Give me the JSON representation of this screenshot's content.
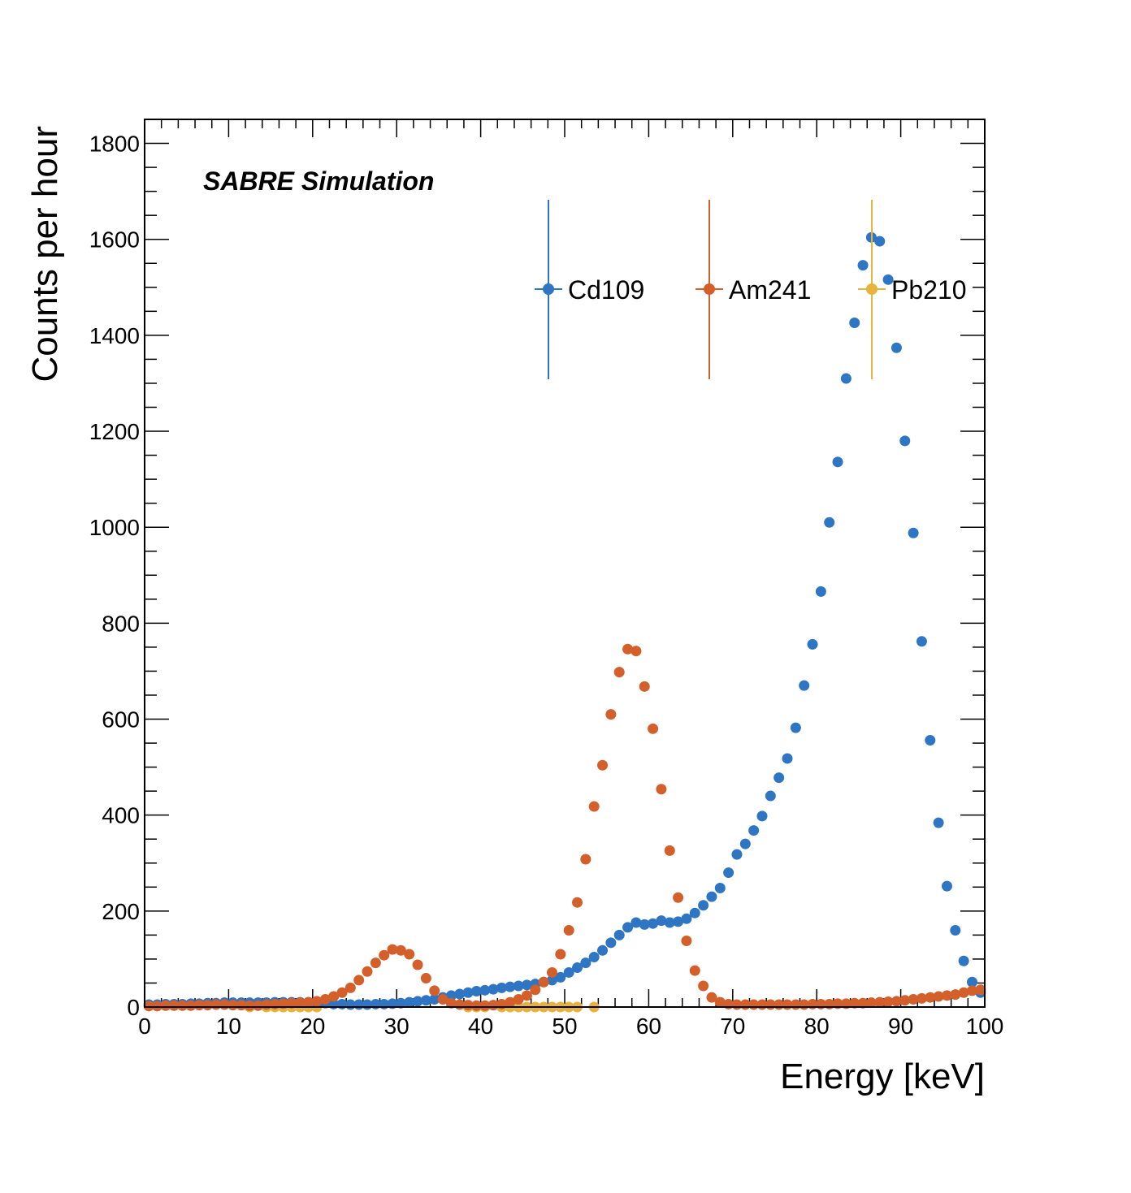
{
  "chart_data": {
    "type": "scatter",
    "annotation": "SABRE Simulation",
    "xlabel": "Energy [keV]",
    "ylabel": "Counts per hour",
    "xlim": [
      0,
      100
    ],
    "ylim": [
      0,
      1850
    ],
    "x_ticks": [
      0,
      10,
      20,
      30,
      40,
      50,
      60,
      70,
      80,
      90,
      100
    ],
    "y_ticks": [
      0,
      200,
      400,
      600,
      800,
      1000,
      1200,
      1400,
      1600,
      1800
    ],
    "x_tick_labels": [
      "0",
      "10",
      "20",
      "30",
      "40",
      "50",
      "60",
      "70",
      "80",
      "90",
      "100"
    ],
    "y_tick_labels": [
      "0",
      "200",
      "400",
      "600",
      "800",
      "1000",
      "1200",
      "1400",
      "1600",
      "1800"
    ],
    "grid": false,
    "legend": "top-right",
    "series": [
      {
        "name": "Cd109",
        "color": "#2E75C4",
        "x": [
          0.5,
          1.5,
          2.5,
          3.5,
          4.5,
          5.5,
          6.5,
          7.5,
          8.5,
          9.5,
          10.5,
          11.5,
          12.5,
          13.5,
          14.5,
          15.5,
          16.5,
          17.5,
          18.5,
          19.5,
          20.5,
          21.5,
          22.5,
          23.5,
          24.5,
          25.5,
          26.5,
          27.5,
          28.5,
          29.5,
          30.5,
          31.5,
          32.5,
          33.5,
          34.5,
          35.5,
          36.5,
          37.5,
          38.5,
          39.5,
          40.5,
          41.5,
          42.5,
          43.5,
          44.5,
          45.5,
          46.5,
          47.5,
          48.5,
          49.5,
          50.5,
          51.5,
          52.5,
          53.5,
          54.5,
          55.5,
          56.5,
          57.5,
          58.5,
          59.5,
          60.5,
          61.5,
          62.5,
          63.5,
          64.5,
          65.5,
          66.5,
          67.5,
          68.5,
          69.5,
          70.5,
          71.5,
          72.5,
          73.5,
          74.5,
          75.5,
          76.5,
          77.5,
          78.5,
          79.5,
          80.5,
          81.5,
          82.5,
          83.5,
          84.5,
          85.5,
          86.5,
          87.5,
          88.5,
          89.5,
          90.5,
          91.5,
          92.5,
          93.5,
          94.5,
          95.5,
          96.5,
          97.5,
          98.5,
          99.5
        ],
        "y": [
          5,
          5,
          6,
          6,
          6,
          7,
          7,
          8,
          8,
          9,
          9,
          9,
          9,
          9,
          9,
          10,
          10,
          10,
          10,
          10,
          9,
          8,
          6,
          6,
          5,
          5,
          5,
          6,
          6,
          7,
          8,
          10,
          12,
          14,
          16,
          20,
          24,
          27,
          30,
          33,
          35,
          37,
          40,
          42,
          44,
          46,
          48,
          52,
          56,
          62,
          72,
          82,
          92,
          104,
          118,
          134,
          150,
          166,
          176,
          172,
          174,
          180,
          176,
          178,
          184,
          196,
          212,
          230,
          248,
          280,
          318,
          340,
          368,
          398,
          440,
          478,
          518,
          582,
          670,
          756,
          866,
          1010,
          1136,
          1310,
          1426,
          1546,
          1604,
          1596,
          1516,
          1374,
          1180,
          988,
          762,
          556,
          384,
          252,
          160,
          96,
          52,
          30
        ]
      },
      {
        "name": "Am241",
        "color": "#D35F2B",
        "x": [
          0.5,
          1.5,
          2.5,
          3.5,
          4.5,
          5.5,
          6.5,
          7.5,
          8.5,
          9.5,
          10.5,
          11.5,
          12.5,
          13.5,
          14.5,
          15.5,
          16.5,
          17.5,
          18.5,
          19.5,
          20.5,
          21.5,
          22.5,
          23.5,
          24.5,
          25.5,
          26.5,
          27.5,
          28.5,
          29.5,
          30.5,
          31.5,
          32.5,
          33.5,
          34.5,
          35.5,
          36.5,
          37.5,
          38.5,
          39.5,
          40.5,
          41.5,
          42.5,
          43.5,
          44.5,
          45.5,
          46.5,
          47.5,
          48.5,
          49.5,
          50.5,
          51.5,
          52.5,
          53.5,
          54.5,
          55.5,
          56.5,
          57.5,
          58.5,
          59.5,
          60.5,
          61.5,
          62.5,
          63.5,
          64.5,
          65.5,
          66.5,
          67.5,
          68.5,
          69.5,
          70.5,
          71.5,
          72.5,
          73.5,
          74.5,
          75.5,
          76.5,
          77.5,
          78.5,
          79.5,
          80.5,
          81.5,
          82.5,
          83.5,
          84.5,
          85.5,
          86.5,
          87.5,
          88.5,
          89.5,
          90.5,
          91.5,
          92.5,
          93.5,
          94.5,
          95.5,
          96.5,
          97.5,
          98.5,
          99.5
        ],
        "y": [
          2,
          2,
          3,
          3,
          3,
          3,
          4,
          4,
          5,
          5,
          4,
          4,
          3,
          3,
          5,
          6,
          7,
          8,
          9,
          10,
          12,
          16,
          22,
          30,
          40,
          56,
          74,
          92,
          108,
          120,
          118,
          110,
          88,
          60,
          34,
          16,
          8,
          5,
          4,
          3,
          3,
          4,
          6,
          10,
          16,
          24,
          36,
          52,
          72,
          110,
          160,
          218,
          308,
          418,
          504,
          610,
          698,
          746,
          742,
          668,
          580,
          454,
          326,
          228,
          138,
          76,
          44,
          20,
          10,
          6,
          5,
          5,
          5,
          5,
          5,
          5,
          5,
          5,
          5,
          6,
          6,
          6,
          7,
          7,
          8,
          8,
          9,
          10,
          11,
          12,
          14,
          16,
          18,
          20,
          22,
          24,
          26,
          30,
          34,
          36
        ]
      },
      {
        "name": "Pb210",
        "color": "#E8B33C",
        "x": [
          12.5,
          14.5,
          15.5,
          16.5,
          17.5,
          18.5,
          19.5,
          20.5,
          38.5,
          39.5,
          40.5,
          42.5,
          43.5,
          44.5,
          45.5,
          46.5,
          47.5,
          48.5,
          49.5,
          50.5,
          51.5,
          53.5
        ],
        "y": [
          0,
          0,
          0,
          0,
          0,
          0,
          0,
          0,
          0,
          0,
          0,
          0,
          0,
          0,
          0,
          0,
          0,
          0,
          0,
          0,
          0,
          0
        ]
      }
    ]
  }
}
